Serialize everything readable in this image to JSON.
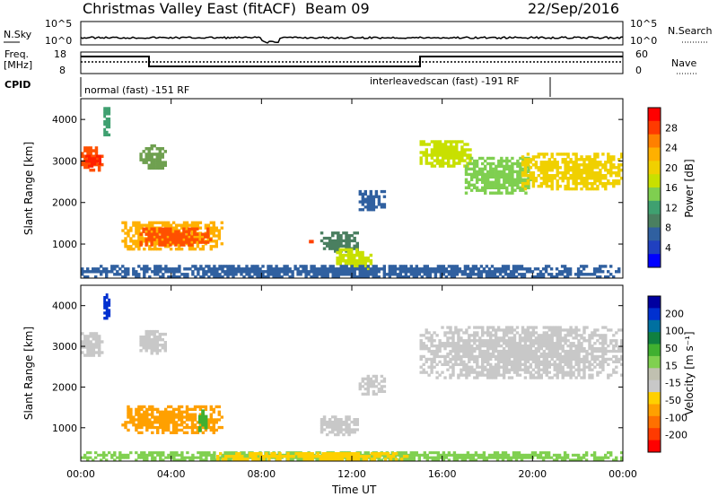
{
  "header": {
    "title": "Christmas Valley East (fitACF)",
    "beam": "Beam 09",
    "date": "22/Sep/2016"
  },
  "labels": {
    "nsky": "N.Sky",
    "freq": "Freq.",
    "mhz": "[MHz]",
    "cpid": "CPID",
    "nsearch": "N.Search",
    "nave": "Nave"
  },
  "small_axes": {
    "nsky_ticks": [
      "10^5",
      "10^0"
    ],
    "nsearch_ticks": [
      "10^5",
      "10^0"
    ],
    "freq_ticks": [
      "18",
      "8"
    ],
    "nave_ticks": [
      "60",
      "0"
    ]
  },
  "cpid_modes": [
    {
      "label": "normal (fast) -151 RF",
      "start_hour": 0
    },
    {
      "label": "interleavedscan (fast) -191 RF",
      "start_hour": 15
    }
  ],
  "colorbars": {
    "power": {
      "label": "Power [dB]",
      "ticks": [
        "28",
        "24",
        "20",
        "16",
        "12",
        "8",
        "4"
      ],
      "colors": [
        "#ff0000",
        "#ff3a00",
        "#ff8000",
        "#ffb000",
        "#f0d000",
        "#c8e000",
        "#7fcf50",
        "#3fa070",
        "#4a7f60",
        "#3060a0",
        "#2040c0",
        "#0000ff"
      ]
    },
    "velocity": {
      "label": "Velocity [m s⁻¹]",
      "ticks": [
        "200",
        "100",
        "50",
        "15",
        "-15",
        "-50",
        "-100",
        "-200"
      ],
      "colors": [
        "#0000a0",
        "#0030d0",
        "#0070a0",
        "#108040",
        "#40b030",
        "#80d050",
        "#c0c0b0",
        "#c8c8c8",
        "#ffd000",
        "#ffa000",
        "#ff7000",
        "#ff3a00",
        "#ff0000"
      ]
    }
  },
  "chart_data": [
    {
      "type": "heatmap",
      "name": "power",
      "ylabel": "Slant Range [km]",
      "xlabel": "Time UT",
      "xlim": [
        "00:00",
        "24:00"
      ],
      "ylim": [
        180,
        4500
      ],
      "y_ticks": [
        "4000",
        "3000",
        "2000",
        "1000"
      ],
      "x_ticks": [
        "00:00",
        "04:00",
        "08:00",
        "12:00",
        "16:00",
        "20:00",
        "00:00"
      ],
      "regions": [
        {
          "t0": 0.0,
          "t1": 1.0,
          "r0": 2750,
          "r1": 3350,
          "color": "#ff5000"
        },
        {
          "t0": 0.2,
          "t1": 0.9,
          "r0": 2850,
          "r1": 3150,
          "color": "#ff2000"
        },
        {
          "t0": 1.0,
          "t1": 1.3,
          "r0": 3600,
          "r1": 4300,
          "color": "#3fa070"
        },
        {
          "t0": 2.6,
          "t1": 3.8,
          "r0": 2800,
          "r1": 3400,
          "color": "#6fa050"
        },
        {
          "t0": 1.8,
          "t1": 6.3,
          "r0": 850,
          "r1": 1550,
          "color": "#ffb000"
        },
        {
          "t0": 2.6,
          "t1": 5.8,
          "r0": 950,
          "r1": 1400,
          "color": "#ff5000"
        },
        {
          "t0": 10.1,
          "t1": 10.3,
          "r0": 950,
          "r1": 1100,
          "color": "#ff4000"
        },
        {
          "t0": 10.6,
          "t1": 12.3,
          "r0": 800,
          "r1": 1300,
          "color": "#4a7f60"
        },
        {
          "t0": 11.3,
          "t1": 12.9,
          "r0": 300,
          "r1": 900,
          "color": "#c8e000"
        },
        {
          "t0": 12.3,
          "t1": 13.5,
          "r0": 1800,
          "r1": 2300,
          "color": "#3060a0"
        },
        {
          "t0": 15.0,
          "t1": 17.3,
          "r0": 2850,
          "r1": 3500,
          "color": "#c8e000"
        },
        {
          "t0": 17.0,
          "t1": 20.0,
          "r0": 2200,
          "r1": 3100,
          "color": "#7fcf50"
        },
        {
          "t0": 19.5,
          "t1": 24.0,
          "r0": 2300,
          "r1": 3200,
          "color": "#f0d000"
        },
        {
          "t0": 0.0,
          "t1": 24.0,
          "r0": 180,
          "r1": 500,
          "color": "#3060a0"
        }
      ]
    },
    {
      "type": "heatmap",
      "name": "velocity",
      "ylabel": "Slant Range [km]",
      "xlabel": "Time UT",
      "xlim": [
        "00:00",
        "24:00"
      ],
      "ylim": [
        180,
        4500
      ],
      "y_ticks": [
        "4000",
        "3000",
        "2000",
        "1000"
      ],
      "x_ticks": [
        "00:00",
        "04:00",
        "08:00",
        "12:00",
        "16:00",
        "20:00",
        "00:00"
      ],
      "regions": [
        {
          "t0": 0.0,
          "t1": 1.0,
          "r0": 2750,
          "r1": 3350,
          "color": "#c8c8c8"
        },
        {
          "t0": 1.0,
          "t1": 1.3,
          "r0": 3600,
          "r1": 4300,
          "color": "#0030d0"
        },
        {
          "t0": 2.6,
          "t1": 3.8,
          "r0": 2800,
          "r1": 3400,
          "color": "#c8c8c8"
        },
        {
          "t0": 1.8,
          "t1": 6.3,
          "r0": 850,
          "r1": 1550,
          "color": "#ffa000"
        },
        {
          "t0": 5.2,
          "t1": 5.6,
          "r0": 900,
          "r1": 1450,
          "color": "#40b030"
        },
        {
          "t0": 10.6,
          "t1": 12.3,
          "r0": 800,
          "r1": 1300,
          "color": "#c8c8c8"
        },
        {
          "t0": 12.3,
          "t1": 13.5,
          "r0": 1800,
          "r1": 2300,
          "color": "#c8c8c8"
        },
        {
          "t0": 15.0,
          "t1": 24.0,
          "r0": 2200,
          "r1": 3500,
          "color": "#c8c8c8"
        },
        {
          "t0": 0.0,
          "t1": 24.0,
          "r0": 180,
          "r1": 420,
          "color": "#80d050"
        },
        {
          "t0": 6.0,
          "t1": 14.5,
          "r0": 200,
          "r1": 400,
          "color": "#ffd000"
        }
      ]
    }
  ]
}
